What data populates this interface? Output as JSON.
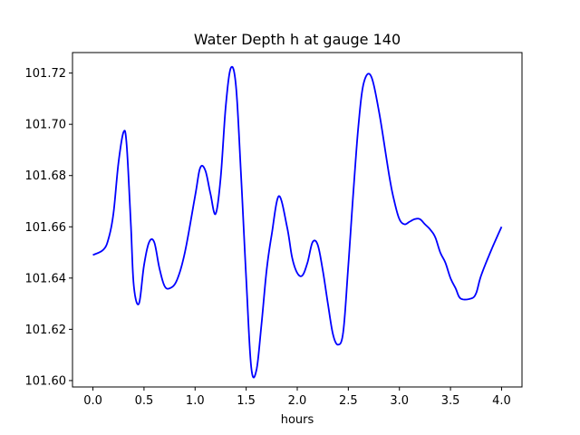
{
  "chart_data": {
    "type": "line",
    "title": "Water Depth h at gauge 140",
    "xlabel": "hours",
    "ylabel": "",
    "xlim": [
      -0.2,
      4.2
    ],
    "ylim": [
      101.5975,
      101.728
    ],
    "xticks": [
      0.0,
      0.5,
      1.0,
      1.5,
      2.0,
      2.5,
      3.0,
      3.5,
      4.0
    ],
    "xtick_labels": [
      "0.0",
      "0.5",
      "1.0",
      "1.5",
      "2.0",
      "2.5",
      "3.0",
      "3.5",
      "4.0"
    ],
    "yticks": [
      101.6,
      101.62,
      101.64,
      101.66,
      101.68,
      101.7,
      101.72
    ],
    "ytick_labels": [
      "101.60",
      "101.62",
      "101.64",
      "101.66",
      "101.68",
      "101.70",
      "101.72"
    ],
    "grid": false,
    "series": [
      {
        "color": "#0000ff",
        "x": [
          0.0,
          0.1,
          0.15,
          0.2,
          0.25,
          0.3,
          0.33,
          0.37,
          0.4,
          0.45,
          0.5,
          0.55,
          0.6,
          0.65,
          0.7,
          0.75,
          0.82,
          0.9,
          1.0,
          1.05,
          1.1,
          1.15,
          1.2,
          1.25,
          1.3,
          1.35,
          1.4,
          1.45,
          1.5,
          1.55,
          1.6,
          1.65,
          1.7,
          1.75,
          1.82,
          1.9,
          1.95,
          2.0,
          2.05,
          2.1,
          2.15,
          2.2,
          2.25,
          2.3,
          2.35,
          2.4,
          2.45,
          2.5,
          2.55,
          2.6,
          2.65,
          2.72,
          2.8,
          2.9,
          2.95,
          3.0,
          3.05,
          3.1,
          3.15,
          3.2,
          3.25,
          3.3,
          3.35,
          3.4,
          3.45,
          3.5,
          3.55,
          3.6,
          3.7,
          3.75,
          3.8,
          3.9,
          4.0
        ],
        "y": [
          101.649,
          101.651,
          101.655,
          101.665,
          101.685,
          101.697,
          101.692,
          101.662,
          101.637,
          101.63,
          101.645,
          101.654,
          101.654,
          101.644,
          101.637,
          101.636,
          101.639,
          101.65,
          101.672,
          101.683,
          101.682,
          101.673,
          101.665,
          101.679,
          101.707,
          101.722,
          101.715,
          101.68,
          101.64,
          101.605,
          101.604,
          101.622,
          101.643,
          101.657,
          101.672,
          101.66,
          101.648,
          101.642,
          101.641,
          101.646,
          101.654,
          101.653,
          101.643,
          101.63,
          101.618,
          101.614,
          101.619,
          101.645,
          101.674,
          101.7,
          101.716,
          101.719,
          101.705,
          101.68,
          101.67,
          101.663,
          101.661,
          101.662,
          101.663,
          101.663,
          101.661,
          101.659,
          101.656,
          101.65,
          101.646,
          101.64,
          101.636,
          101.632,
          101.632,
          101.634,
          101.641,
          101.651,
          101.66
        ]
      }
    ]
  }
}
